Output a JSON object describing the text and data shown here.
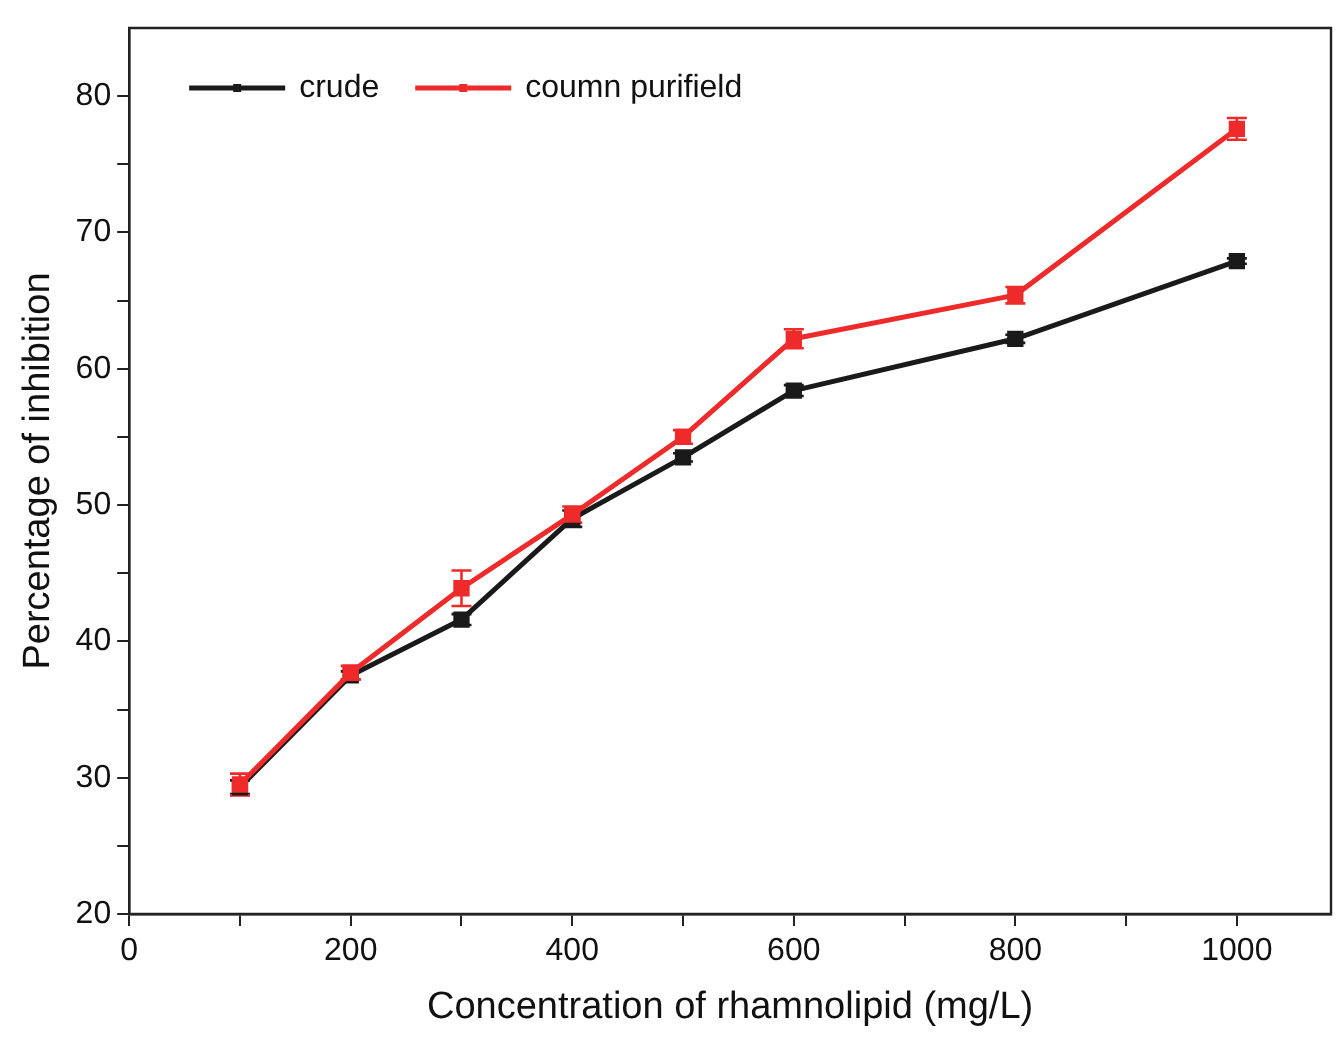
{
  "chart_data": {
    "type": "line",
    "xlabel": "Concentration of rhamnolipid (mg/L)",
    "ylabel": "Percentage of inhibition",
    "x": [
      100,
      200,
      300,
      400,
      500,
      600,
      800,
      1000
    ],
    "series": [
      {
        "name": "crude",
        "color": "#1a1a1a",
        "values": [
          29.3,
          37.5,
          41.6,
          49.0,
          53.5,
          58.4,
          62.2,
          67.9
        ],
        "errors": [
          0.5,
          0.3,
          0.4,
          0.6,
          0.3,
          0.4,
          0.3,
          0.2
        ]
      },
      {
        "name": "coumn purifield",
        "color": "#ee2a2a",
        "values": [
          29.5,
          37.7,
          43.9,
          49.3,
          55.0,
          62.2,
          65.4,
          77.6
        ],
        "errors": [
          0.8,
          0.5,
          1.3,
          0.6,
          0.5,
          0.7,
          0.6,
          0.8
        ]
      }
    ],
    "xlim": [
      0,
      1085
    ],
    "xticks": [
      0,
      {
        "value": 100,
        "label": null
      },
      200,
      {
        "value": 300,
        "label": null
      },
      400,
      {
        "value": 500,
        "label": null
      },
      600,
      {
        "value": 700,
        "label": null
      },
      800,
      {
        "value": 900,
        "label": null
      },
      1000
    ],
    "ylim": [
      20,
      85
    ],
    "yticks": [
      20,
      {
        "value": 25,
        "label": null
      },
      30,
      {
        "value": 35,
        "label": null
      },
      40,
      {
        "value": 45,
        "label": null
      },
      50,
      {
        "value": 55,
        "label": null
      },
      60,
      {
        "value": 65,
        "label": null
      },
      70,
      {
        "value": 75,
        "label": null
      },
      80
    ],
    "grid": false,
    "legend": "top left",
    "marker": "square",
    "line_style": "solid"
  }
}
